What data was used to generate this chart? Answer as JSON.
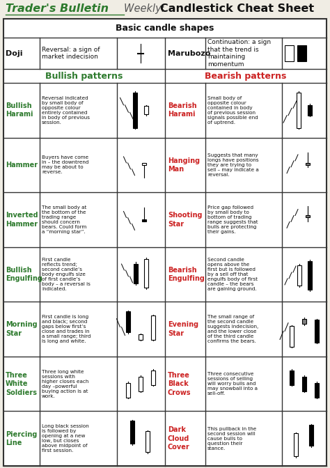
{
  "bg_color": "#f0ede4",
  "table_bg": "#ffffff",
  "border_color": "#333333",
  "bullish_color": "#2d7a2d",
  "bearish_color": "#cc2222",
  "text_color": "#111111",
  "title_green": "#2d7a2d",
  "title_gray": "#555555",
  "title_black": "#111111",
  "pattern_rows": [
    {
      "left_name": "Bullish\nHarami",
      "left_name_color": "#2d7a2d",
      "left_desc": "Reversal indicated\nby small body of\nopposite colour\nentirely contained\nin body of previous\nsession.",
      "left_pattern": "bullish_harami",
      "right_name": "Bearish\nHarami",
      "right_name_color": "#cc2222",
      "right_desc": "Small body of\nopposite colour\ncontained in body\nof previous session\nsignals possible end\nof uptrend.",
      "right_pattern": "bearish_harami"
    },
    {
      "left_name": "Hammer",
      "left_name_color": "#2d7a2d",
      "left_desc": "Buyers have come\nin – the downtrend\nmay be about to\nreverse.",
      "left_pattern": "hammer",
      "right_name": "Hanging\nMan",
      "right_name_color": "#cc2222",
      "right_desc": "Suggests that many\nlongs have positions\nthey are trying to\nsell – may indicate a\nreversal.",
      "right_pattern": "hanging_man"
    },
    {
      "left_name": "Inverted\nHammer",
      "left_name_color": "#2d7a2d",
      "left_desc": "The small body at\nthe bottom of the\ntrading range\nshould concern\nbears. Could form\na “morning star”.",
      "left_pattern": "inverted_hammer",
      "right_name": "Shooting\nStar",
      "right_name_color": "#cc2222",
      "right_desc": "Price gap followed\nby small body to\nbottom of trading\nrange suggests that\nbulls are protecting\ntheir gains.",
      "right_pattern": "shooting_star"
    },
    {
      "left_name": "Bullish\nEngulfing",
      "left_name_color": "#2d7a2d",
      "left_desc": "First candle\nreflects trend;\nsecond candle’s\nbody engulfs size\nof first candle’s\nbody – a reversal is\nindicated.",
      "left_pattern": "bullish_engulfing",
      "right_name": "Bearish\nEngulfing",
      "right_name_color": "#cc2222",
      "right_desc": "Second candle\nopens above the\nfirst but is followed\nby a sell off that\nengulfs body of first\ncandle – the bears\nare gaining ground.",
      "right_pattern": "bearish_engulfing"
    },
    {
      "left_name": "Morning\nStar",
      "left_name_color": "#2d7a2d",
      "left_desc": "First candle is long\nand black; second\ngaps below first’s\nclose and trades in\na small range; third\nis long and white.",
      "left_pattern": "morning_star",
      "right_name": "Evening\nStar",
      "right_name_color": "#cc2222",
      "right_desc": "The small range of\nthe second candle\nsuggests indecision,\nand the lower close\nof the third candle\nconfirms the bears.",
      "right_pattern": "evening_star"
    },
    {
      "left_name": "Three\nWhite\nSoldiers",
      "left_name_color": "#2d7a2d",
      "left_desc": "Three long white\nsessions with\nhigher closes each\nday –powerful\nbuying action is at\nwork.",
      "left_pattern": "three_white_soldiers",
      "right_name": "Three\nBlack\nCrows",
      "right_name_color": "#cc2222",
      "right_desc": "Three consecutive\nsessions of selling\nwill worry bulls and\nmay snowball into a\nsell-off.",
      "right_pattern": "three_black_crows"
    },
    {
      "left_name": "Piercing\nLine",
      "left_name_color": "#2d7a2d",
      "left_desc": "Long black session\nis followed by\nopening at a new\nlow, but closes\nabove midpoint of\nfirst session.",
      "left_pattern": "piercing_line",
      "right_name": "Dark\nCloud\nCover",
      "right_name_color": "#cc2222",
      "right_desc": "This pullback in the\nsecond session will\ncause bulls to\nquestion their\nstance.",
      "right_pattern": "dark_cloud_cover"
    }
  ]
}
